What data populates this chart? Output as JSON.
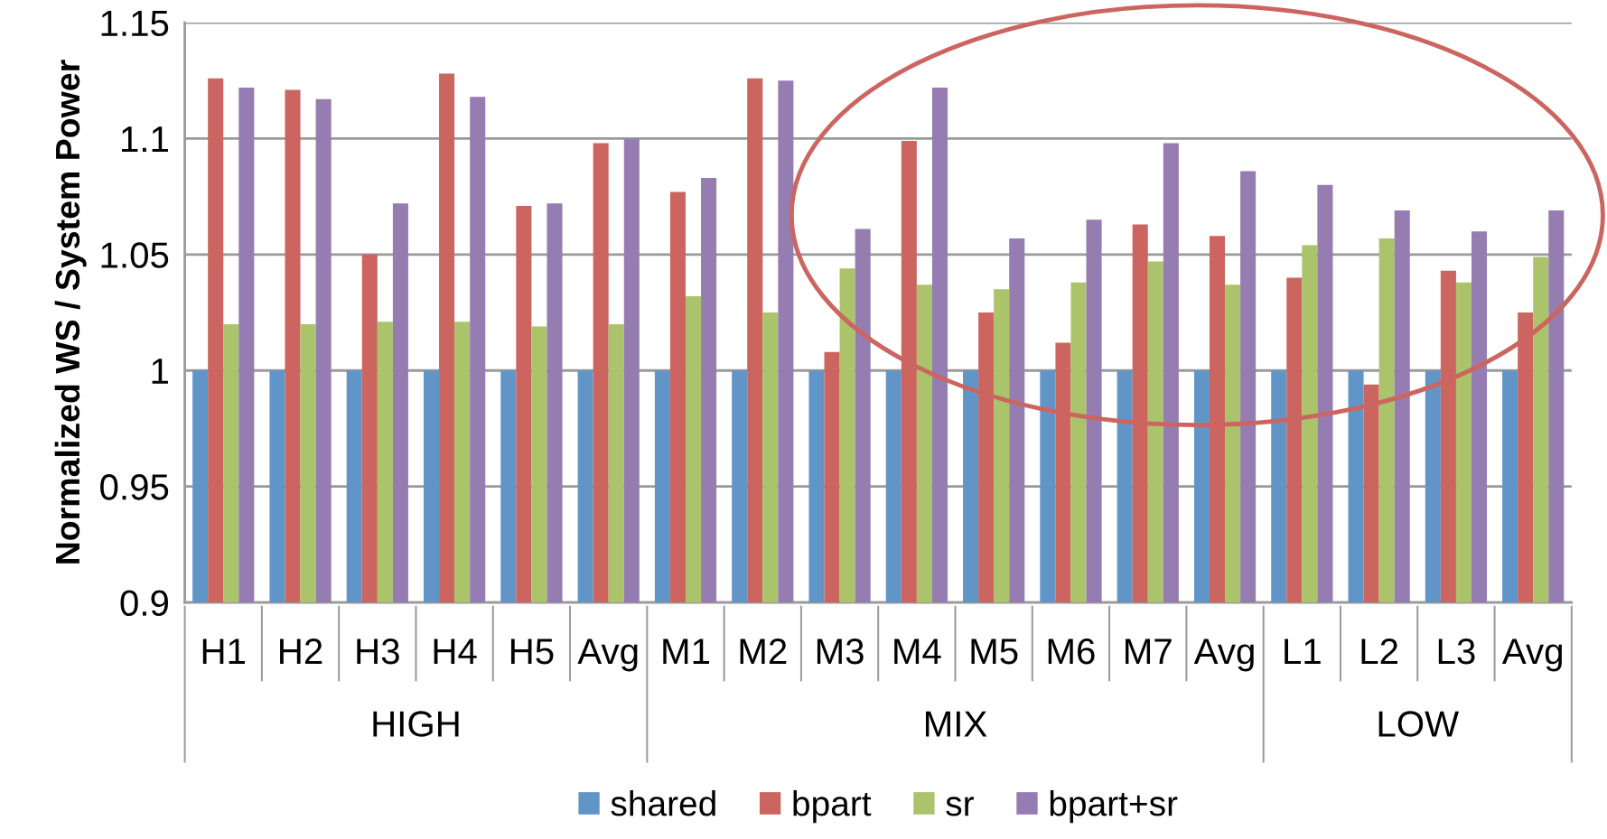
{
  "chart_data": {
    "type": "bar",
    "ylabel": "Normalized WS / System Power",
    "categories": [
      "H1",
      "H2",
      "H3",
      "H4",
      "H5",
      "Avg",
      "M1",
      "M2",
      "M3",
      "M4",
      "M5",
      "M6",
      "M7",
      "Avg",
      "L1",
      "L2",
      "L3",
      "Avg"
    ],
    "series": [
      {
        "name": "shared",
        "color": "#6195c8",
        "values": [
          1,
          1,
          1,
          1,
          1,
          1,
          1,
          1,
          1,
          1,
          1,
          1,
          1,
          1,
          1,
          1,
          1,
          1
        ]
      },
      {
        "name": "bpart",
        "color": "#cc6560",
        "values": [
          1.126,
          1.121,
          1.05,
          1.128,
          1.071,
          1.098,
          1.077,
          1.126,
          1.008,
          1.099,
          1.025,
          1.012,
          1.063,
          1.058,
          1.04,
          0.994,
          1.043,
          1.025
        ]
      },
      {
        "name": "sr",
        "color": "#abc36b",
        "values": [
          1.02,
          1.02,
          1.021,
          1.021,
          1.019,
          1.02,
          1.032,
          1.025,
          1.044,
          1.037,
          1.035,
          1.038,
          1.047,
          1.037,
          1.054,
          1.057,
          1.038,
          1.049
        ]
      },
      {
        "name": "bpart+sr",
        "color": "#957db2",
        "values": [
          1.122,
          1.117,
          1.072,
          1.118,
          1.072,
          1.1,
          1.083,
          1.125,
          1.061,
          1.122,
          1.057,
          1.065,
          1.098,
          1.086,
          1.08,
          1.069,
          1.06,
          1.069
        ]
      }
    ],
    "ylim": [
      0.9,
      1.15
    ],
    "yticks": [
      0.9,
      0.95,
      1,
      1.05,
      1.1,
      1.15
    ],
    "annotations": [
      "HIGH",
      "MIX",
      "LOW"
    ],
    "grid": "y",
    "legend": "bottom"
  }
}
